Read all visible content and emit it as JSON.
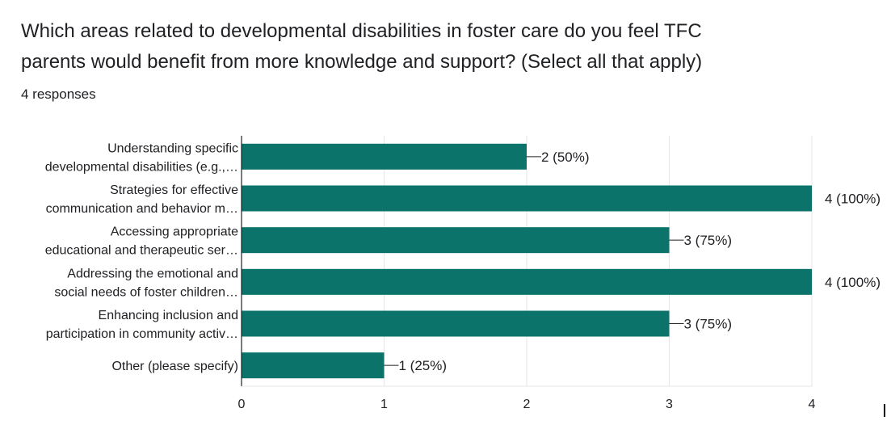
{
  "question": {
    "title_line1": "Which areas related to developmental disabilities in foster care do you feel TFC",
    "title_line2": "parents would benefit from more knowledge and support? (Select all that apply)",
    "responses": "4 responses"
  },
  "colors": {
    "bar": "#0b7369",
    "grid": "#e6e6e6",
    "axis": "#202124",
    "text": "#202124"
  },
  "chart_data": {
    "type": "bar",
    "orientation": "horizontal",
    "categories": [
      [
        "Understanding specific",
        "developmental disabilities (e.g.,…"
      ],
      [
        "Strategies for effective",
        "communication and behavior m…"
      ],
      [
        "Accessing appropriate",
        "educational and therapeutic ser…"
      ],
      [
        "Addressing the emotional and",
        "social needs of foster children…"
      ],
      [
        "Enhancing inclusion and",
        "participation in community activ…"
      ],
      [
        "Other (please specify)"
      ]
    ],
    "values": [
      2,
      4,
      3,
      4,
      3,
      1
    ],
    "data_labels": [
      "2 (50%)",
      "4 (100%)",
      "3 (75%)",
      "4 (100%)",
      "3 (75%)",
      "1 (25%)"
    ],
    "xlim": [
      0,
      4
    ],
    "x_ticks": [
      "0",
      "1",
      "2",
      "3",
      "4"
    ],
    "grid": true,
    "legend": "none"
  }
}
